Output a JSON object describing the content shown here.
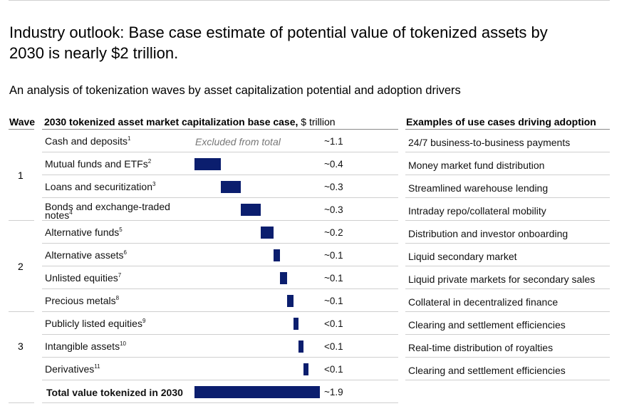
{
  "title": "Industry outlook: Base case estimate of potential value of tokenized assets by 2030 is nearly $2 trillion.",
  "subtitle": "An analysis of tokenization waves by asset capitalization potential and adoption drivers",
  "headers": {
    "wave": "Wave",
    "chart": "2030 tokenized asset market capitalization base case,",
    "chart_unit": "$ trillion",
    "usecases": "Examples of use cases driving adoption"
  },
  "waves": [
    "1",
    "2",
    "3"
  ],
  "excluded_label": "Excluded from total",
  "rows": [
    {
      "label": "Cash and deposits",
      "note": "1",
      "value_label": "~1.1",
      "usecase": "24/7 business-to-business payments"
    },
    {
      "label": "Mutual funds and ETFs",
      "note": "2",
      "value_label": "~0.4",
      "usecase": "Money market fund distribution"
    },
    {
      "label": "Loans and securitization",
      "note": "3",
      "value_label": "~0.3",
      "usecase": "Streamlined warehouse lending"
    },
    {
      "label": "Bonds and exchange-traded notes",
      "note": "4",
      "value_label": "~0.3",
      "usecase": "Intraday repo/collateral mobility"
    },
    {
      "label": "Alternative funds",
      "note": "5",
      "value_label": "~0.2",
      "usecase": "Distribution and investor onboarding"
    },
    {
      "label": "Alternative assets",
      "note": "6",
      "value_label": "~0.1",
      "usecase": "Liquid secondary market"
    },
    {
      "label": "Unlisted equities",
      "note": "7",
      "value_label": "~0.1",
      "usecase": "Liquid private markets for secondary sales"
    },
    {
      "label": "Precious metals",
      "note": "8",
      "value_label": "~0.1",
      "usecase": "Collateral in decentralized finance"
    },
    {
      "label": "Publicly listed equities",
      "note": "9",
      "value_label": "<0.1",
      "usecase": "Clearing and settlement efficiencies"
    },
    {
      "label": "Intangible assets",
      "note": "10",
      "value_label": "<0.1",
      "usecase": "Real-time distribution of royalties"
    },
    {
      "label": "Derivatives",
      "note": "11",
      "value_label": "<0.1",
      "usecase": "Clearing and settlement efficiencies"
    }
  ],
  "total": {
    "label": "Total value tokenized in 2030",
    "value_label": "~1.9"
  },
  "chart_data": {
    "type": "bar",
    "title": "Industry outlook: Base case estimate of potential value of tokenized assets by 2030 is nearly $2 trillion.",
    "subtitle": "An analysis of tokenization waves by asset capitalization potential and adoption drivers",
    "xlabel": "2030 tokenized asset market capitalization base case, $ trillion",
    "ylabel": "",
    "categories": [
      "Cash and deposits",
      "Mutual funds and ETFs",
      "Loans and securitization",
      "Bonds and exchange-traded notes",
      "Alternative funds",
      "Alternative assets",
      "Unlisted equities",
      "Precious metals",
      "Publicly listed equities",
      "Intangible assets",
      "Derivatives",
      "Total value tokenized in 2030"
    ],
    "values": [
      1.1,
      0.4,
      0.3,
      0.3,
      0.2,
      0.1,
      0.1,
      0.1,
      0.05,
      0.04,
      0.03,
      1.9
    ],
    "value_labels": [
      "~1.1",
      "~0.4",
      "~0.3",
      "~0.3",
      "~0.2",
      "~0.1",
      "~0.1",
      "~0.1",
      "<0.1",
      "<0.1",
      "<0.1",
      "~1.9"
    ],
    "excluded_from_total": [
      "Cash and deposits"
    ],
    "waves": [
      {
        "wave": "1",
        "categories": [
          "Cash and deposits",
          "Mutual funds and ETFs",
          "Loans and securitization",
          "Bonds and exchange-traded notes"
        ]
      },
      {
        "wave": "2",
        "categories": [
          "Alternative funds",
          "Alternative assets",
          "Unlisted equities",
          "Precious metals"
        ]
      },
      {
        "wave": "3",
        "categories": [
          "Publicly listed equities",
          "Intangible assets",
          "Derivatives"
        ]
      }
    ],
    "style": "waterfall",
    "bar_color": "#0b1e6e",
    "grid": false,
    "legend": "none"
  }
}
